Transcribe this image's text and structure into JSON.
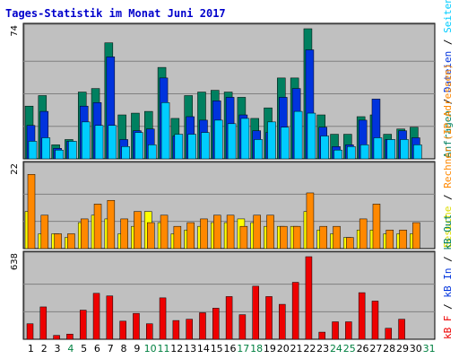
{
  "chart_data": [
    {
      "type": "bar",
      "title": "Tages-Statistik im Monat Juni 2017",
      "categories": [
        "1",
        "2",
        "3",
        "4",
        "5",
        "6",
        "7",
        "8",
        "9",
        "10",
        "11",
        "12",
        "13",
        "14",
        "15",
        "16",
        "17",
        "18",
        "19",
        "20",
        "21",
        "22",
        "23",
        "24",
        "25",
        "26",
        "27",
        "28",
        "29",
        "30",
        "31"
      ],
      "weekend_days": [
        "4",
        "10",
        "11",
        "17",
        "18",
        "24",
        "25",
        "31"
      ],
      "y_max_label": "74",
      "ylim": [
        0,
        74
      ],
      "series": [
        {
          "name": "Anfragen",
          "color": "#008060",
          "values": [
            30,
            36,
            8,
            11,
            38,
            40,
            66,
            25,
            26,
            27,
            52,
            23,
            36,
            38,
            39,
            38,
            35,
            23,
            29,
            46,
            46,
            74,
            25,
            14,
            14,
            24,
            25,
            14,
            17,
            18,
            0
          ]
        },
        {
          "name": "Dateien",
          "color": "#0033dd",
          "values": [
            19,
            27,
            6,
            10,
            30,
            32,
            58,
            11,
            16,
            17,
            46,
            13,
            24,
            22,
            33,
            35,
            25,
            16,
            15,
            35,
            40,
            62,
            18,
            7,
            8,
            22,
            34,
            11,
            16,
            12,
            0
          ]
        },
        {
          "name": "Seiten",
          "color": "#00ccff",
          "values": [
            10,
            12,
            5,
            10,
            21,
            19,
            19,
            7,
            15,
            8,
            32,
            14,
            14,
            15,
            22,
            20,
            23,
            11,
            21,
            18,
            27,
            26,
            13,
            5,
            7,
            8,
            12,
            11,
            11,
            8,
            0
          ]
        }
      ]
    },
    {
      "type": "bar",
      "y_max_label": "22",
      "ylim": [
        0,
        22
      ],
      "series": [
        {
          "name": "Besuche",
          "color": "#ffff00",
          "values": [
            10,
            4,
            4,
            3,
            7,
            9,
            8,
            4,
            6,
            10,
            7,
            4,
            5,
            6,
            7,
            7,
            8,
            7,
            6,
            6,
            6,
            10,
            5,
            4,
            3,
            5,
            5,
            4,
            4,
            4,
            0
          ]
        },
        {
          "name": "Rechner (IP-Adressen)",
          "color": "#ff8800",
          "values": [
            20,
            9,
            4,
            4,
            8,
            12,
            13,
            8,
            10,
            7,
            9,
            6,
            7,
            8,
            9,
            9,
            6,
            9,
            9,
            6,
            6,
            15,
            6,
            6,
            3,
            8,
            12,
            5,
            5,
            7,
            0
          ]
        }
      ]
    },
    {
      "type": "bar",
      "y_max_label": "638",
      "ylim": [
        0,
        638
      ],
      "series": [
        {
          "name": "kB F",
          "color": "#ee0000",
          "values": [
            120,
            250,
            30,
            40,
            225,
            355,
            335,
            140,
            200,
            120,
            320,
            145,
            155,
            205,
            240,
            330,
            190,
            410,
            330,
            270,
            440,
            638,
            55,
            135,
            135,
            360,
            295,
            85,
            155,
            0,
            0
          ]
        }
      ]
    }
  ],
  "side_legend_top": [
    {
      "text": "Anfragen",
      "color": "#008060"
    },
    {
      "text": " / ",
      "color": "#000000"
    },
    {
      "text": "Dateien",
      "color": "#0033dd"
    },
    {
      "text": " / ",
      "color": "#000000"
    },
    {
      "text": "Seiten",
      "color": "#00ccff"
    }
  ],
  "side_legend_mid": [
    {
      "text": "Besuche",
      "color": "#dddd00"
    },
    {
      "text": " / ",
      "color": "#000000"
    },
    {
      "text": "Rechner (IP-Adressen)",
      "color": "#ff8800"
    }
  ],
  "side_legend_bottom": [
    {
      "text": "kB F",
      "color": "#ee0000"
    },
    {
      "text": " / ",
      "color": "#000000"
    },
    {
      "text": "kB In",
      "color": "#0033dd"
    },
    {
      "text": " / ",
      "color": "#000000"
    },
    {
      "text": "kB Out",
      "color": "#008060"
    }
  ],
  "colors": {
    "panel_bg": "#c0c0c0",
    "weekday_label": "#000000",
    "weekend_label": "#008040",
    "title": "#0000cc"
  }
}
